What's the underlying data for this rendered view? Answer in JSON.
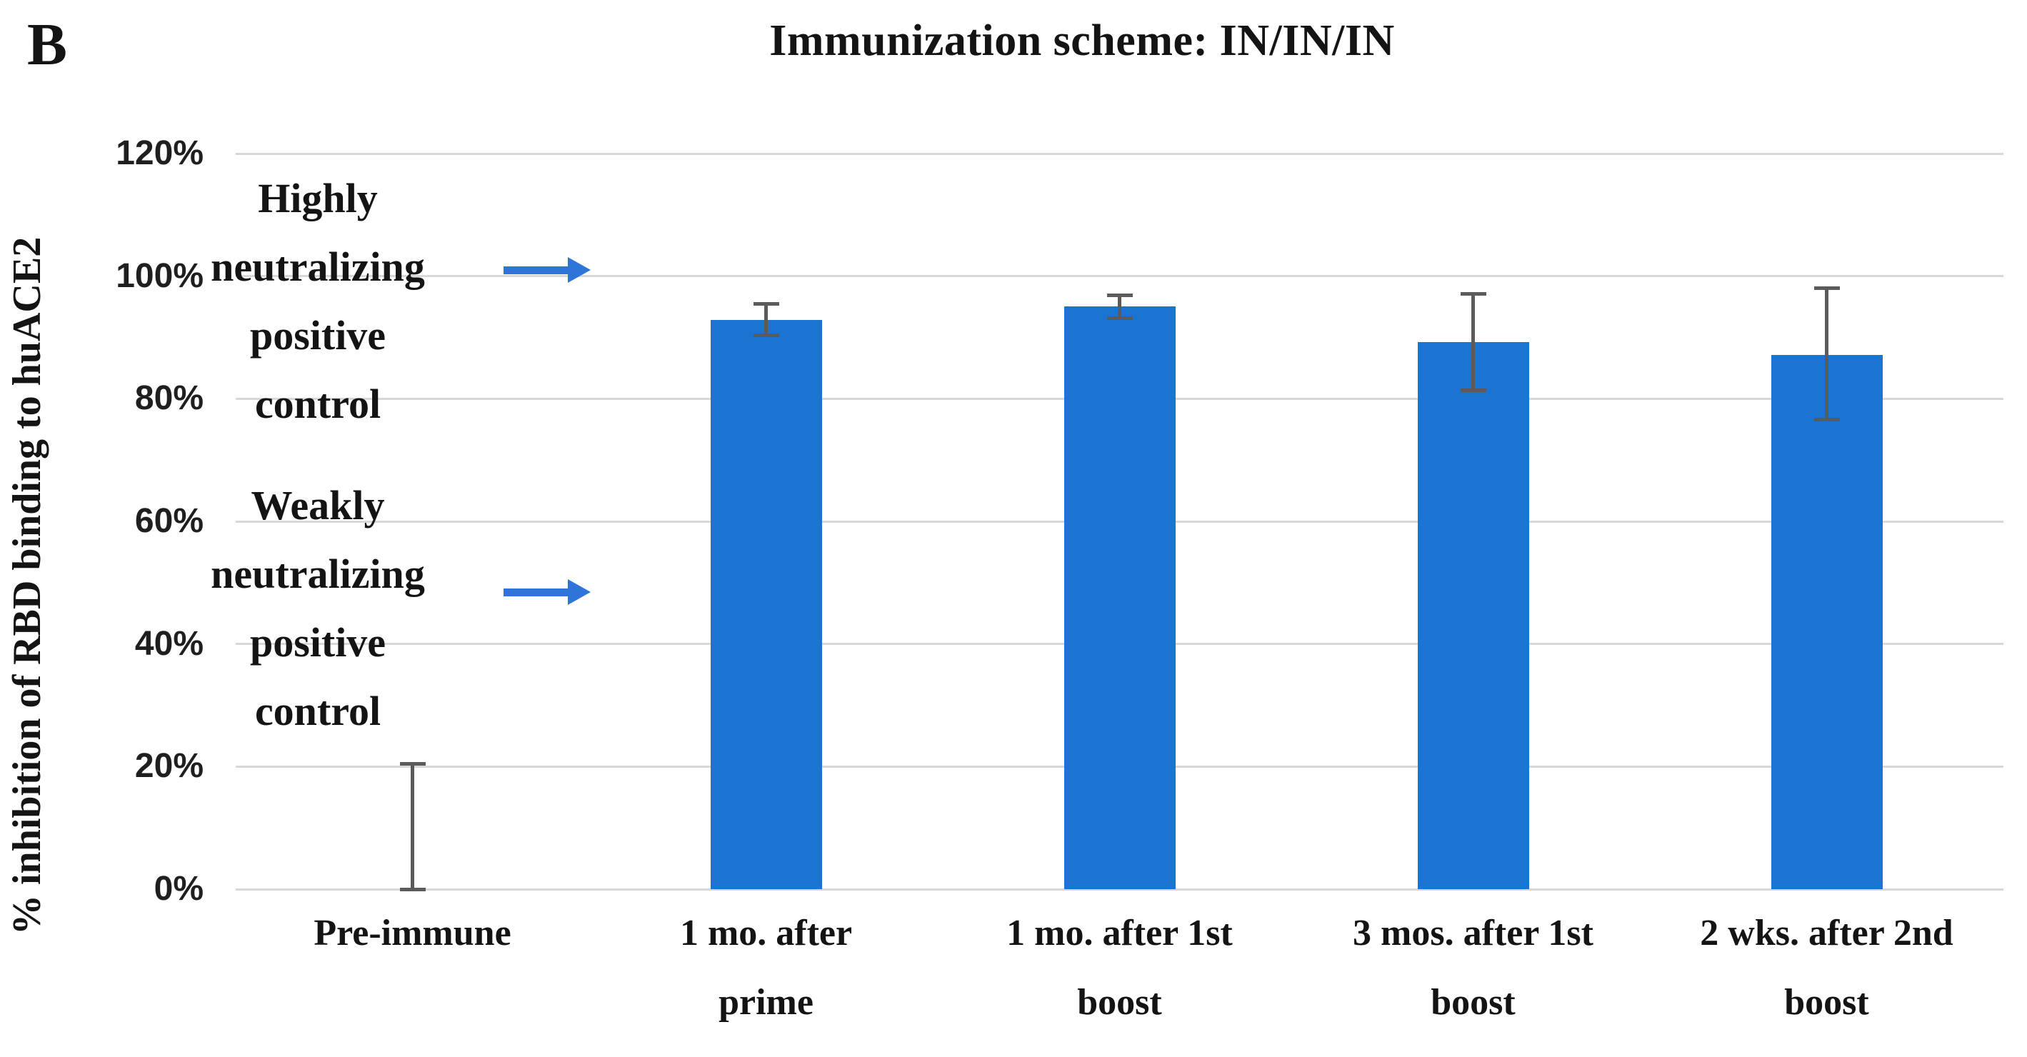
{
  "figure": {
    "panel_label": "B",
    "title": "Immunization scheme: IN/IN/IN",
    "y_axis_label": "% inhibition of RBD binding to huACE2"
  },
  "annotations": {
    "highly": {
      "text": "Highly\nneutralizing\npositive\ncontrol",
      "arrow_value_pct": 101
    },
    "weakly": {
      "text": "Weakly\nneutralizing\npositive\ncontrol",
      "arrow_value_pct": 48.5
    }
  },
  "colors": {
    "bar": "#1B74D1",
    "arrow": "#2F75D9",
    "error": "#5B5B5B",
    "gridline": "#D8D8D8",
    "text": "#141414"
  },
  "chart_data": {
    "type": "bar",
    "title": "Immunization scheme: IN/IN/IN",
    "xlabel": "",
    "ylabel": "% inhibition of RBD binding to huACE2",
    "ylim": [
      0,
      120
    ],
    "grid": true,
    "legend": false,
    "yticks": [
      {
        "value": 0,
        "label": "0%"
      },
      {
        "value": 20,
        "label": "20%"
      },
      {
        "value": 40,
        "label": "40%"
      },
      {
        "value": 60,
        "label": "60%"
      },
      {
        "value": 80,
        "label": "80%"
      },
      {
        "value": 100,
        "label": "100%"
      },
      {
        "value": 120,
        "label": "120%"
      }
    ],
    "categories": [
      "Pre-immune",
      "1 mo. after\nprime",
      "1 mo. after 1st\nboost",
      "3 mos. after 1st\nboost",
      "2 wks. after 2nd\nboost"
    ],
    "values": [
      0,
      92.9,
      95.1,
      89.2,
      87.2
    ],
    "error_bars": [
      {
        "low": 0,
        "high": 20.5
      },
      {
        "low": 90.3,
        "high": 95.5
      },
      {
        "low": 93.1,
        "high": 96.9
      },
      {
        "low": 81.4,
        "high": 97.1
      },
      {
        "low": 76.6,
        "high": 98.0
      }
    ]
  }
}
